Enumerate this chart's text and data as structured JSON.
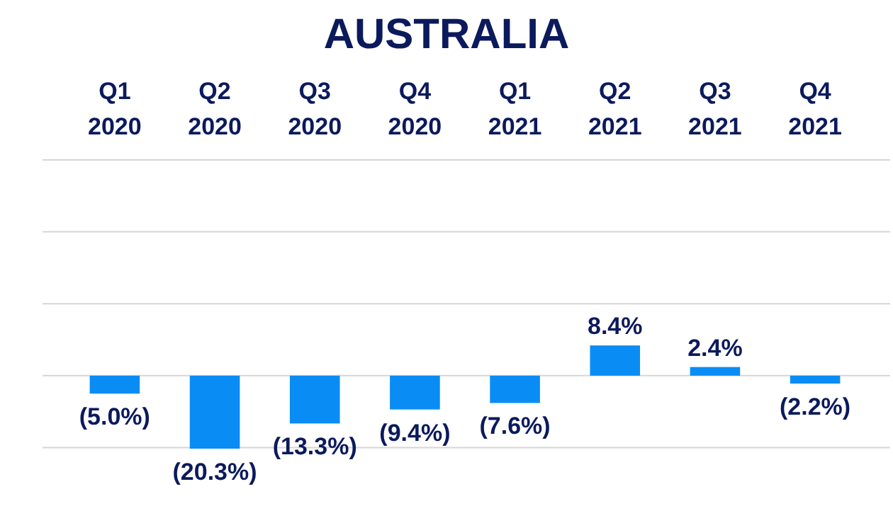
{
  "chart_data": {
    "type": "bar",
    "title": "AUSTRALIA",
    "categories": [
      "Q1\n2020",
      "Q2\n2020",
      "Q3\n2020",
      "Q4\n2020",
      "Q1\n2021",
      "Q2\n2021",
      "Q3\n2021",
      "Q4\n2021"
    ],
    "values": [
      -5.0,
      -20.3,
      -13.3,
      -9.4,
      -7.6,
      8.4,
      2.4,
      -2.2
    ],
    "value_labels": [
      "(5.0%)",
      "(20.3%)",
      "(13.3%)",
      "(9.4%)",
      "(7.6%)",
      "8.4%",
      "2.4%",
      "(2.2%)"
    ],
    "color": "#0a8cf5",
    "yticks": [
      {
        "value": -20,
        "label": null
      },
      {
        "value": 0,
        "label": null
      },
      {
        "value": 20,
        "label": null
      },
      {
        "value": 40,
        "label": null
      },
      {
        "value": 60,
        "label": null
      }
    ],
    "ylim": [
      -20.3,
      60
    ],
    "grid": "y",
    "tick_labels": "x"
  }
}
